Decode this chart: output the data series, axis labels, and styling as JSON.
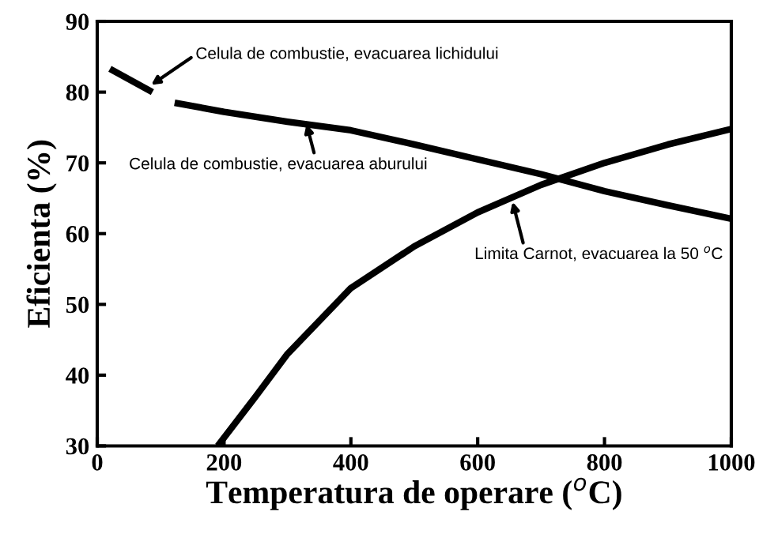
{
  "chart_data": {
    "type": "line",
    "xlabel": "Temperatura de operare ($^{o}$C)",
    "ylabel": "Eficienta (%)",
    "xlim": [
      0,
      1000
    ],
    "ylim": [
      30,
      90
    ],
    "xticks": [
      0,
      200,
      400,
      600,
      800,
      1000
    ],
    "yticks": [
      30,
      40,
      50,
      60,
      70,
      80,
      90
    ],
    "grid": false,
    "legend": false,
    "marker": "none",
    "line_style": "solid",
    "series": [
      {
        "color": "#000000",
        "x": [
          20,
          87
        ],
        "values": [
          83.3,
          80.0
        ]
      },
      {
        "color": "#000000",
        "x": [
          122,
          200,
          300,
          400,
          500,
          600,
          700,
          800,
          900,
          1000
        ],
        "values": [
          78.5,
          77.2,
          75.8,
          74.6,
          72.6,
          70.5,
          68.4,
          66.0,
          64.0,
          62.1
        ]
      },
      {
        "color": "#000000",
        "x": [
          190,
          250,
          300,
          400,
          500,
          600,
          700,
          800,
          900,
          1000
        ],
        "values": [
          30.0,
          37.0,
          43.0,
          52.3,
          58.2,
          63.0,
          66.9,
          70.0,
          72.6,
          74.8
        ]
      }
    ],
    "annotations": [
      {
        "text": "Celula de combustie, evacuarea lichidului",
        "x": 85,
        "y": 81
      },
      {
        "text": "Celula de combustie, evacuarea aburului",
        "x": 330,
        "y": 75.5
      },
      {
        "text": "Limita Carnot, evacuarea la 50 $^{o}$C",
        "x": 655,
        "y": 64.5
      }
    ]
  }
}
